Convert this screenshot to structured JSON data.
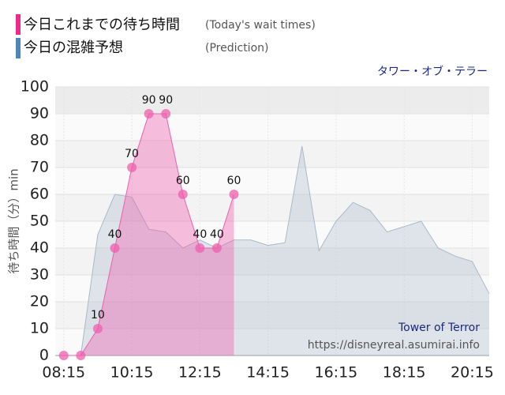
{
  "chart_data": {
    "type": "area",
    "title": "タワー・オブ・テラー",
    "legend": [
      {
        "name": "今日これまでの待ち時間",
        "note": "(Today's wait times)"
      },
      {
        "name": "今日の混雑予想",
        "note": "(Prediction)"
      }
    ],
    "y_label": "待ち時間（分）min",
    "watermark": [
      "Tower of Terror",
      "https://disneyreal.asumirai.info"
    ],
    "xlim": [
      8.0,
      20.75
    ],
    "xticks": [
      {
        "value": 8.25,
        "label": "08:15"
      },
      {
        "value": 10.25,
        "label": "10:15"
      },
      {
        "value": 12.25,
        "label": "12:15"
      },
      {
        "value": 14.25,
        "label": "14:15"
      },
      {
        "value": 16.25,
        "label": "16:15"
      },
      {
        "value": 18.25,
        "label": "18:15"
      },
      {
        "value": 20.25,
        "label": "20:15"
      }
    ],
    "ylim": [
      0,
      100
    ],
    "yticks": [
      0,
      10,
      20,
      30,
      40,
      50,
      60,
      70,
      80,
      90,
      100
    ],
    "series": [
      {
        "name": "今日の混雑予想",
        "color": "#a9b9c9",
        "x": [
          8.25,
          8.75,
          9.25,
          9.75,
          10.25,
          10.75,
          11.25,
          11.75,
          12.25,
          12.75,
          13.25,
          13.75,
          14.25,
          14.75,
          15.25,
          15.75,
          16.25,
          16.75,
          17.25,
          17.75,
          18.25,
          18.75,
          19.25,
          19.75,
          20.25,
          20.75
        ],
        "values": [
          0,
          0,
          45,
          60,
          59,
          47,
          46,
          40,
          43,
          40,
          43,
          43,
          41,
          42,
          78,
          39,
          50,
          57,
          54,
          46,
          48,
          50,
          40,
          37,
          35,
          23
        ]
      },
      {
        "name": "今日これまでの待ち時間",
        "color": "#ee5fae",
        "x": [
          8.25,
          8.75,
          9.25,
          9.75,
          10.25,
          10.75,
          11.25,
          11.75,
          12.25,
          12.75,
          13.25
        ],
        "values": [
          0,
          0,
          10,
          40,
          70,
          90,
          90,
          60,
          40,
          40,
          60
        ],
        "value_labels": [
          null,
          null,
          "10",
          "40",
          "70",
          "90",
          "90",
          "60",
          "40",
          "40",
          "60"
        ]
      }
    ]
  }
}
